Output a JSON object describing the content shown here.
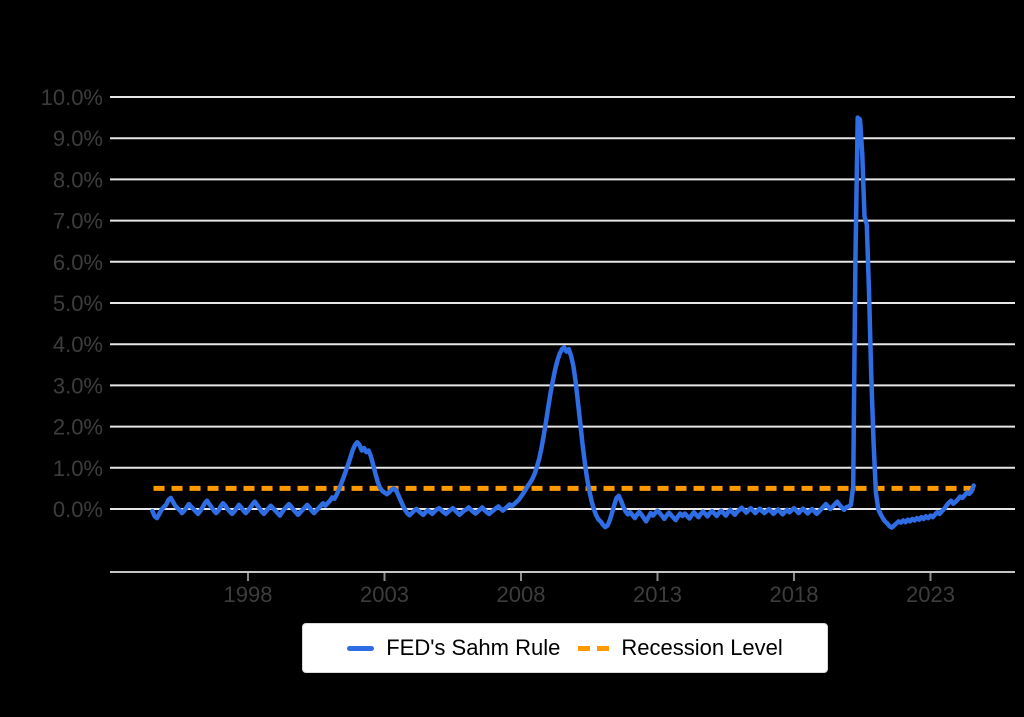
{
  "window": {
    "background": "#000000"
  },
  "colors": {
    "background": "#000000",
    "gridline": "#e6e6e6",
    "axis_line": "#c4c4c4",
    "tick_mark": "#8a8a8a",
    "tick_label": "#3d3d3d",
    "legend_background": "#ffffff",
    "legend_text": "#000000",
    "sahm_line": "#2e6de4",
    "recession_line": "#ff9900"
  },
  "legend": {
    "items": [
      {
        "label": "FED's Sahm Rule",
        "color": "#2e6de4",
        "style": "solid"
      },
      {
        "label": "Recession Level",
        "color": "#ff9900",
        "style": "dashed"
      }
    ]
  },
  "chart_data": {
    "type": "line",
    "title": "",
    "xlabel": "",
    "ylabel": "",
    "grid": true,
    "legend_position": "bottom-center",
    "ylim": [
      -1.55,
      10.3
    ],
    "xlim_years": [
      1992.95,
      2026.1
    ],
    "y_tick_labels": [
      "0.0%",
      "1.0%",
      "2.0%",
      "3.0%",
      "4.0%",
      "5.0%",
      "6.0%",
      "7.0%",
      "8.0%",
      "9.0%",
      "10.0%"
    ],
    "y_tick_values": [
      0,
      1,
      2,
      3,
      4,
      5,
      6,
      7,
      8,
      9,
      10
    ],
    "x_tick_labels": [
      "1998",
      "2003",
      "2008",
      "2013",
      "2018",
      "2023"
    ],
    "x_tick_years": [
      1998,
      2003,
      2008,
      2013,
      2018,
      2023
    ],
    "series": [
      {
        "name": "FED's Sahm Rule",
        "color": "#2e6de4",
        "style": "solid",
        "frequency": "monthly",
        "start_year": 1994,
        "start_month": 7,
        "end_year": 2024,
        "end_month": 8,
        "unit": "percent",
        "values": [
          -0.05,
          -0.18,
          -0.22,
          -0.12,
          -0.02,
          0.05,
          0.1,
          0.22,
          0.27,
          0.18,
          0.08,
          0.02,
          -0.03,
          -0.1,
          -0.04,
          0.04,
          0.12,
          0.06,
          0.0,
          -0.06,
          -0.12,
          -0.05,
          0.04,
          0.14,
          0.2,
          0.12,
          0.04,
          -0.04,
          -0.1,
          -0.04,
          0.06,
          0.14,
          0.08,
          0.0,
          -0.06,
          -0.12,
          -0.06,
          0.02,
          0.1,
          0.04,
          -0.04,
          -0.1,
          -0.04,
          0.04,
          0.12,
          0.18,
          0.1,
          0.02,
          -0.06,
          -0.12,
          -0.05,
          0.02,
          0.08,
          0.02,
          -0.04,
          -0.1,
          -0.16,
          -0.08,
          0.0,
          0.06,
          0.12,
          0.06,
          -0.02,
          -0.08,
          -0.14,
          -0.08,
          -0.02,
          0.04,
          0.1,
          0.04,
          -0.04,
          -0.1,
          -0.04,
          0.02,
          0.08,
          0.14,
          0.08,
          0.14,
          0.2,
          0.28,
          0.25,
          0.35,
          0.48,
          0.62,
          0.77,
          0.92,
          1.08,
          1.25,
          1.42,
          1.55,
          1.62,
          1.55,
          1.42,
          1.48,
          1.38,
          1.42,
          1.28,
          1.08,
          0.86,
          0.66,
          0.52,
          0.44,
          0.4,
          0.36,
          0.4,
          0.46,
          0.5,
          0.46,
          0.35,
          0.22,
          0.1,
          -0.02,
          -0.1,
          -0.15,
          -0.1,
          -0.04,
          0.0,
          -0.05,
          -0.1,
          -0.14,
          -0.08,
          -0.03,
          -0.07,
          -0.12,
          -0.06,
          -0.01,
          0.02,
          -0.03,
          -0.08,
          -0.12,
          -0.07,
          -0.02,
          0.02,
          -0.03,
          -0.09,
          -0.14,
          -0.09,
          -0.04,
          -0.01,
          0.04,
          -0.02,
          -0.07,
          -0.11,
          -0.06,
          -0.01,
          0.04,
          -0.03,
          -0.08,
          -0.12,
          -0.07,
          -0.03,
          0.02,
          0.06,
          0.01,
          -0.04,
          0.01,
          0.06,
          0.11,
          0.07,
          0.12,
          0.17,
          0.22,
          0.3,
          0.38,
          0.47,
          0.56,
          0.64,
          0.73,
          0.86,
          1.02,
          1.22,
          1.48,
          1.78,
          2.12,
          2.48,
          2.82,
          3.12,
          3.38,
          3.6,
          3.77,
          3.88,
          3.92,
          3.82,
          3.88,
          3.72,
          3.48,
          3.1,
          2.6,
          2.1,
          1.6,
          1.15,
          0.75,
          0.45,
          0.2,
          0.0,
          -0.15,
          -0.25,
          -0.3,
          -0.38,
          -0.44,
          -0.4,
          -0.28,
          -0.1,
          0.1,
          0.27,
          0.32,
          0.2,
          0.05,
          -0.06,
          -0.13,
          -0.08,
          -0.15,
          -0.22,
          -0.14,
          -0.07,
          -0.14,
          -0.22,
          -0.3,
          -0.2,
          -0.1,
          -0.16,
          -0.1,
          -0.04,
          -0.1,
          -0.17,
          -0.24,
          -0.16,
          -0.09,
          -0.15,
          -0.21,
          -0.27,
          -0.18,
          -0.11,
          -0.17,
          -0.11,
          -0.17,
          -0.23,
          -0.15,
          -0.08,
          -0.14,
          -0.2,
          -0.12,
          -0.06,
          -0.12,
          -0.18,
          -0.1,
          -0.05,
          -0.11,
          -0.17,
          -0.1,
          -0.04,
          -0.1,
          -0.16,
          -0.08,
          -0.02,
          -0.08,
          -0.14,
          -0.07,
          -0.02,
          0.03,
          -0.03,
          -0.09,
          -0.03,
          0.02,
          -0.04,
          -0.1,
          -0.04,
          0.01,
          -0.05,
          -0.1,
          -0.05,
          0.0,
          -0.06,
          -0.12,
          -0.06,
          -0.01,
          -0.07,
          -0.13,
          -0.07,
          -0.02,
          -0.08,
          -0.03,
          0.02,
          -0.04,
          -0.1,
          -0.04,
          0.01,
          -0.05,
          -0.11,
          -0.05,
          0.0,
          -0.06,
          -0.12,
          -0.06,
          0.0,
          0.06,
          0.12,
          0.06,
          0.0,
          0.06,
          0.12,
          0.18,
          0.1,
          0.04,
          -0.02,
          0.04,
          0.06,
          0.1,
          0.55,
          6.0,
          9.5,
          9.45,
          8.6,
          7.1,
          6.9,
          5.2,
          3.2,
          1.6,
          0.4,
          0.0,
          -0.12,
          -0.22,
          -0.3,
          -0.35,
          -0.42,
          -0.45,
          -0.4,
          -0.35,
          -0.3,
          -0.33,
          -0.28,
          -0.32,
          -0.26,
          -0.3,
          -0.24,
          -0.28,
          -0.22,
          -0.26,
          -0.2,
          -0.24,
          -0.18,
          -0.22,
          -0.16,
          -0.2,
          -0.13,
          -0.08,
          -0.12,
          -0.05,
          0.0,
          0.08,
          0.15,
          0.2,
          0.13,
          0.17,
          0.23,
          0.3,
          0.27,
          0.33,
          0.4,
          0.37,
          0.43,
          0.57
        ]
      },
      {
        "name": "Recession Level",
        "color": "#ff9900",
        "style": "dashed",
        "constant_value": 0.5,
        "span_years": [
          1994.54,
          2024.67
        ],
        "unit": "percent"
      }
    ]
  }
}
